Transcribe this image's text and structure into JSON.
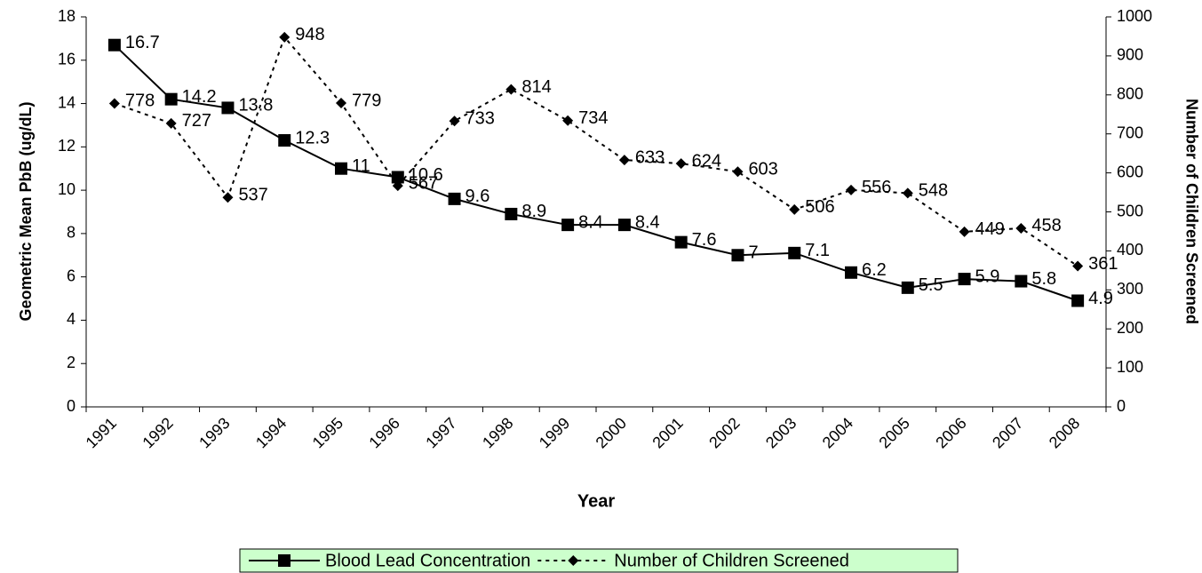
{
  "chart_data": {
    "type": "line",
    "x_label": "Year",
    "y_label": "Geometric Mean PbB (ug/dL)",
    "y2_label": "Number of Children Screened",
    "categories": [
      "1991",
      "1992",
      "1993",
      "1994",
      "1995",
      "1996",
      "1997",
      "1998",
      "1999",
      "2000",
      "2001",
      "2002",
      "2003",
      "2004",
      "2005",
      "2006",
      "2007",
      "2008"
    ],
    "series": [
      {
        "name": "Blood Lead Concentration",
        "color": "#000000",
        "marker": "square",
        "dash": false,
        "values": [
          16.7,
          14.2,
          13.8,
          12.3,
          11,
          10.6,
          9.6,
          8.9,
          8.4,
          8.4,
          7.6,
          7,
          7.1,
          6.2,
          5.5,
          5.9,
          5.8,
          4.9
        ]
      },
      {
        "name": "Number of Children Screened",
        "color": "#000000",
        "marker": "diamond",
        "dash": true,
        "axis": "y2",
        "values": [
          778,
          727,
          537,
          948,
          779,
          567,
          733,
          814,
          734,
          633,
          624,
          603,
          506,
          556,
          548,
          449,
          458,
          361
        ]
      }
    ],
    "ylim": [
      0,
      18
    ],
    "yticks": [
      0,
      2,
      4,
      6,
      8,
      10,
      12,
      14,
      16,
      18
    ],
    "y2lim": [
      0,
      1000
    ],
    "y2ticks": [
      0,
      100,
      200,
      300,
      400,
      500,
      600,
      700,
      800,
      900,
      1000
    ],
    "grid": false,
    "legend": "bottom",
    "legend_color": "#ccffcc"
  }
}
